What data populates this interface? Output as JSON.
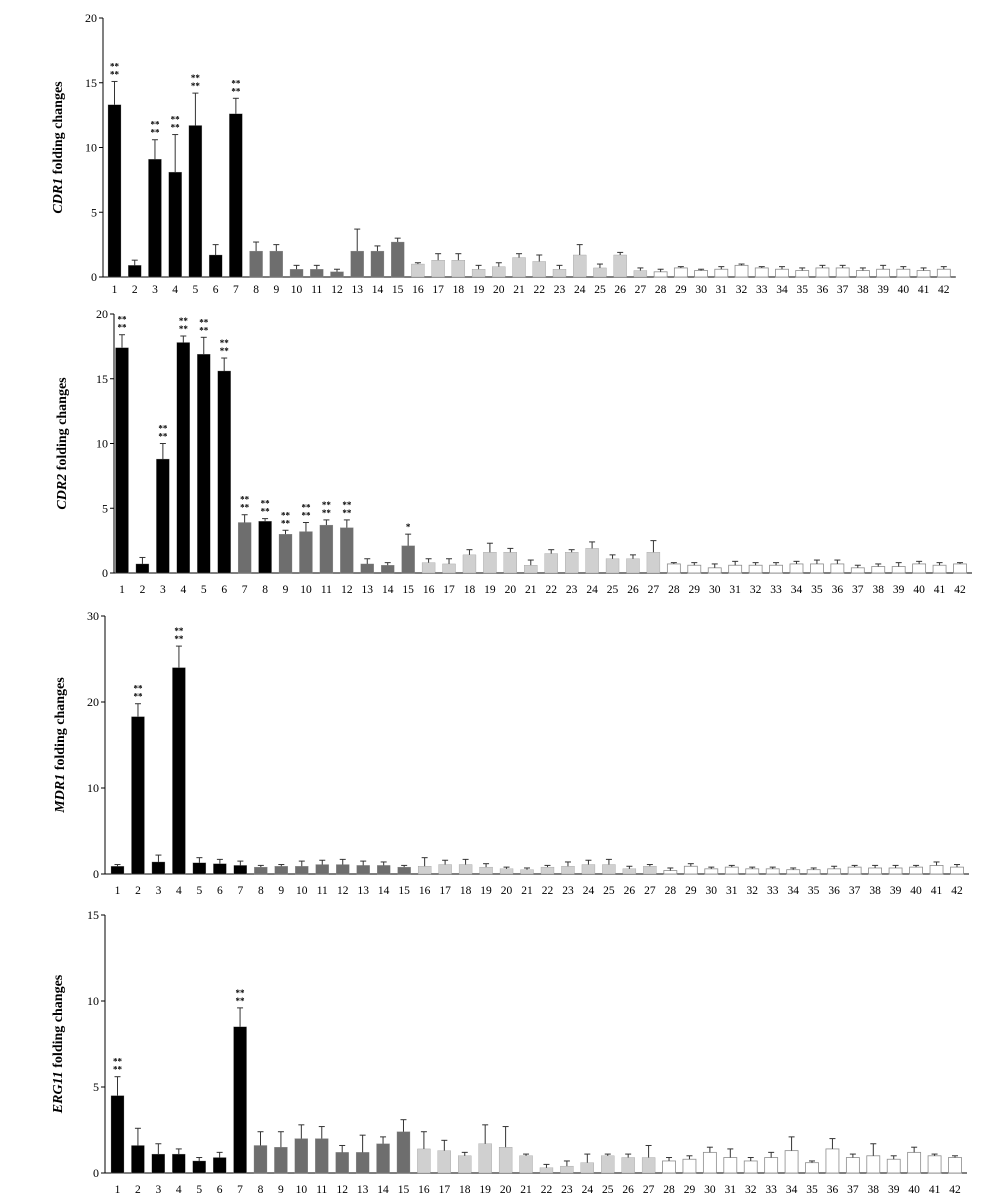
{
  "colors": {
    "group1": "#000000",
    "group2": "#6e6e6e",
    "group3": "#d0d0d0",
    "group4": "#ffffff",
    "axis": "#000000"
  },
  "chart_data": [
    {
      "type": "bar",
      "ylabel_italic": "CDR1",
      "ylabel_rest": " folding changes",
      "ylim": [
        0,
        20
      ],
      "yticks": [
        "0",
        "5",
        "10",
        "15",
        "20"
      ],
      "grid": false,
      "categories": [
        "1",
        "2",
        "3",
        "4",
        "5",
        "6",
        "7",
        "8",
        "9",
        "10",
        "11",
        "12",
        "13",
        "14",
        "15",
        "16",
        "17",
        "18",
        "19",
        "20",
        "21",
        "22",
        "23",
        "24",
        "25",
        "26",
        "27",
        "28",
        "29",
        "30",
        "31",
        "32",
        "33",
        "34",
        "35",
        "36",
        "37",
        "38",
        "39",
        "40",
        "41",
        "42"
      ],
      "groups": [
        1,
        1,
        1,
        1,
        1,
        1,
        1,
        2,
        2,
        2,
        2,
        2,
        2,
        2,
        2,
        3,
        3,
        3,
        3,
        3,
        3,
        3,
        3,
        3,
        3,
        3,
        3,
        4,
        4,
        4,
        4,
        4,
        4,
        4,
        4,
        4,
        4,
        4,
        4,
        4,
        4,
        4
      ],
      "values": [
        13.3,
        0.9,
        9.1,
        8.1,
        11.7,
        1.7,
        12.6,
        2.0,
        2.0,
        0.6,
        0.6,
        0.4,
        2.0,
        2.0,
        2.7,
        1.0,
        1.3,
        1.3,
        0.6,
        0.8,
        1.5,
        1.2,
        0.6,
        1.7,
        0.7,
        1.7,
        0.5,
        0.4,
        0.7,
        0.5,
        0.6,
        0.9,
        0.7,
        0.6,
        0.5,
        0.7,
        0.7,
        0.5,
        0.6,
        0.6,
        0.5,
        0.6
      ],
      "errors": [
        1.8,
        0.4,
        1.5,
        2.9,
        2.5,
        0.8,
        1.2,
        0.7,
        0.5,
        0.3,
        0.3,
        0.2,
        1.7,
        0.4,
        0.3,
        0.1,
        0.5,
        0.5,
        0.3,
        0.3,
        0.3,
        0.5,
        0.3,
        0.8,
        0.3,
        0.2,
        0.2,
        0.2,
        0.1,
        0.1,
        0.2,
        0.1,
        0.1,
        0.2,
        0.2,
        0.2,
        0.2,
        0.2,
        0.3,
        0.2,
        0.2,
        0.2
      ],
      "significance": [
        "**\n**",
        "",
        "**\n**",
        "**\n**",
        "**\n**",
        "",
        "**\n**",
        "",
        "",
        "",
        "",
        "",
        "",
        "",
        "",
        "",
        "",
        "",
        "",
        "",
        "",
        "",
        "",
        "",
        "",
        "",
        "",
        "",
        "",
        "",
        "",
        "",
        "",
        "",
        "",
        "",
        "",
        "",
        "",
        "",
        "",
        ""
      ]
    },
    {
      "type": "bar",
      "ylabel_italic": "CDR2",
      "ylabel_rest": " folding changes",
      "ylim": [
        0,
        20
      ],
      "yticks": [
        "0",
        "5",
        "10",
        "15",
        "20"
      ],
      "grid": false,
      "categories": [
        "1",
        "2",
        "3",
        "4",
        "5",
        "6",
        "7",
        "8",
        "9",
        "10",
        "11",
        "12",
        "13",
        "14",
        "15",
        "16",
        "17",
        "18",
        "19",
        "20",
        "21",
        "22",
        "23",
        "24",
        "25",
        "26",
        "27",
        "28",
        "29",
        "30",
        "31",
        "32",
        "33",
        "34",
        "35",
        "36",
        "37",
        "38",
        "39",
        "40",
        "41",
        "42"
      ],
      "groups": [
        1,
        1,
        1,
        1,
        1,
        1,
        2,
        2,
        2,
        2,
        2,
        2,
        2,
        2,
        2,
        3,
        3,
        3,
        3,
        3,
        3,
        3,
        3,
        3,
        3,
        3,
        3,
        4,
        4,
        4,
        4,
        4,
        4,
        4,
        4,
        4,
        4,
        4,
        4,
        4,
        4,
        4
      ],
      "colorOverride": {
        "7": 1
      },
      "values": [
        17.4,
        0.7,
        8.8,
        17.8,
        16.9,
        15.6,
        3.9,
        4.0,
        3.0,
        3.2,
        3.7,
        3.5,
        0.7,
        0.6,
        2.1,
        0.8,
        0.7,
        1.4,
        1.6,
        1.6,
        0.6,
        1.5,
        1.6,
        1.9,
        1.1,
        1.1,
        1.6,
        0.7,
        0.6,
        0.4,
        0.6,
        0.6,
        0.6,
        0.7,
        0.7,
        0.7,
        0.4,
        0.5,
        0.5,
        0.7,
        0.6,
        0.7
      ],
      "errors": [
        1.0,
        0.5,
        1.2,
        0.5,
        1.3,
        1.0,
        0.6,
        0.2,
        0.3,
        0.7,
        0.4,
        0.6,
        0.4,
        0.2,
        0.9,
        0.3,
        0.4,
        0.4,
        0.7,
        0.3,
        0.4,
        0.3,
        0.2,
        0.5,
        0.3,
        0.3,
        0.9,
        0.1,
        0.2,
        0.3,
        0.3,
        0.2,
        0.2,
        0.2,
        0.3,
        0.3,
        0.2,
        0.2,
        0.3,
        0.2,
        0.2,
        0.1
      ],
      "significance": [
        "**\n**",
        "",
        "**\n**",
        "**\n**",
        "**\n**",
        "**\n**",
        "**\n**",
        "**\n**",
        "**\n**",
        "**\n**",
        "**\n**",
        "**\n**",
        "",
        "",
        "*",
        "",
        "",
        "",
        "",
        "",
        "",
        "",
        "",
        "",
        "",
        "",
        "",
        "",
        "",
        "",
        "",
        "",
        "",
        "",
        "",
        "",
        "",
        "",
        "",
        "",
        "",
        ""
      ]
    },
    {
      "type": "bar",
      "ylabel_italic": "MDR1",
      "ylabel_rest": " folding changes",
      "ylim": [
        0,
        30
      ],
      "yticks": [
        "0",
        "10",
        "20",
        "30"
      ],
      "grid": false,
      "categories": [
        "1",
        "2",
        "3",
        "4",
        "5",
        "6",
        "7",
        "8",
        "9",
        "10",
        "11",
        "12",
        "13",
        "14",
        "15",
        "16",
        "17",
        "18",
        "19",
        "20",
        "21",
        "22",
        "23",
        "24",
        "25",
        "26",
        "27",
        "28",
        "29",
        "30",
        "31",
        "32",
        "33",
        "34",
        "35",
        "36",
        "37",
        "38",
        "39",
        "40",
        "41",
        "42"
      ],
      "groups": [
        1,
        1,
        1,
        1,
        1,
        1,
        1,
        2,
        2,
        2,
        2,
        2,
        2,
        2,
        2,
        3,
        3,
        3,
        3,
        3,
        3,
        3,
        3,
        3,
        3,
        3,
        3,
        4,
        4,
        4,
        4,
        4,
        4,
        4,
        4,
        4,
        4,
        4,
        4,
        4,
        4,
        4
      ],
      "values": [
        0.9,
        18.3,
        1.4,
        24.0,
        1.3,
        1.2,
        1.0,
        0.8,
        0.9,
        0.9,
        1.1,
        1.1,
        1.0,
        1.0,
        0.8,
        0.9,
        1.1,
        1.1,
        0.8,
        0.6,
        0.5,
        0.8,
        0.9,
        1.1,
        1.1,
        0.6,
        0.9,
        0.4,
        0.9,
        0.6,
        0.8,
        0.6,
        0.6,
        0.5,
        0.5,
        0.6,
        0.8,
        0.7,
        0.7,
        0.8,
        1.0,
        0.8
      ],
      "errors": [
        0.2,
        1.5,
        0.8,
        2.5,
        0.6,
        0.5,
        0.5,
        0.2,
        0.2,
        0.6,
        0.5,
        0.6,
        0.5,
        0.4,
        0.2,
        1.0,
        0.5,
        0.6,
        0.4,
        0.2,
        0.2,
        0.2,
        0.5,
        0.5,
        0.6,
        0.3,
        0.2,
        0.3,
        0.3,
        0.2,
        0.2,
        0.2,
        0.2,
        0.2,
        0.2,
        0.3,
        0.2,
        0.3,
        0.3,
        0.2,
        0.4,
        0.3
      ],
      "significance": [
        "",
        "**\n**",
        "",
        "**\n**",
        "",
        "",
        "",
        "",
        "",
        "",
        "",
        "",
        "",
        "",
        "",
        "",
        "",
        "",
        "",
        "",
        "",
        "",
        "",
        "",
        "",
        "",
        "",
        "",
        "",
        "",
        "",
        "",
        "",
        "",
        "",
        "",
        "",
        "",
        "",
        "",
        "",
        ""
      ]
    },
    {
      "type": "bar",
      "ylabel_italic": "ERG11",
      "ylabel_rest": " folding changes",
      "ylim": [
        0,
        15
      ],
      "yticks": [
        "0",
        "5",
        "10",
        "15"
      ],
      "grid": false,
      "categories": [
        "1",
        "2",
        "3",
        "4",
        "5",
        "6",
        "7",
        "8",
        "9",
        "10",
        "11",
        "12",
        "13",
        "14",
        "15",
        "16",
        "17",
        "18",
        "19",
        "20",
        "21",
        "22",
        "23",
        "24",
        "25",
        "26",
        "27",
        "28",
        "29",
        "30",
        "31",
        "32",
        "33",
        "34",
        "35",
        "36",
        "37",
        "38",
        "39",
        "40",
        "41",
        "42"
      ],
      "groups": [
        1,
        1,
        1,
        1,
        1,
        1,
        1,
        2,
        2,
        2,
        2,
        2,
        2,
        2,
        2,
        3,
        3,
        3,
        3,
        3,
        3,
        3,
        3,
        3,
        3,
        3,
        3,
        4,
        4,
        4,
        4,
        4,
        4,
        4,
        4,
        4,
        4,
        4,
        4,
        4,
        4,
        4
      ],
      "values": [
        4.5,
        1.6,
        1.1,
        1.1,
        0.7,
        0.9,
        8.5,
        1.6,
        1.5,
        2.0,
        2.0,
        1.2,
        1.2,
        1.7,
        2.4,
        1.4,
        1.3,
        1.0,
        1.7,
        1.5,
        1.0,
        0.3,
        0.4,
        0.6,
        1.0,
        0.9,
        0.9,
        0.7,
        0.8,
        1.2,
        0.9,
        0.7,
        0.9,
        1.3,
        0.6,
        1.4,
        0.9,
        1.0,
        0.8,
        1.2,
        1.0,
        0.9
      ],
      "errors": [
        1.1,
        1.0,
        0.6,
        0.3,
        0.2,
        0.3,
        1.1,
        0.8,
        0.9,
        0.8,
        0.7,
        0.4,
        1.0,
        0.4,
        0.7,
        1.0,
        0.6,
        0.2,
        1.1,
        1.2,
        0.1,
        0.2,
        0.3,
        0.5,
        0.1,
        0.2,
        0.7,
        0.2,
        0.2,
        0.3,
        0.5,
        0.2,
        0.3,
        0.8,
        0.1,
        0.6,
        0.2,
        0.7,
        0.2,
        0.3,
        0.1,
        0.1
      ],
      "significance": [
        "**\n**",
        "",
        "",
        "",
        "",
        "",
        "**\n**",
        "",
        "",
        "",
        "",
        "",
        "",
        "",
        "",
        "",
        "",
        "",
        "",
        "",
        "",
        "",
        "",
        "",
        "",
        "",
        "",
        "",
        "",
        "",
        "",
        "",
        "",
        "",
        "",
        "",
        "",
        "",
        "",
        "",
        "",
        ""
      ]
    }
  ]
}
